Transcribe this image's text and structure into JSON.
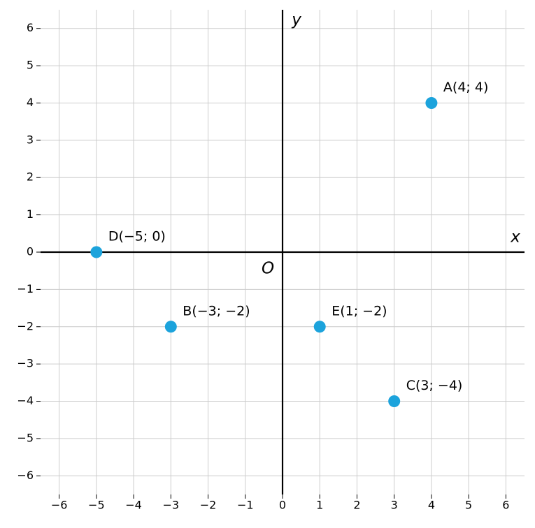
{
  "chart_data": {
    "type": "scatter",
    "x_label": "x",
    "y_label": "y",
    "origin_label": "O",
    "xlim": [
      -6.5,
      6.5
    ],
    "ylim": [
      -6.5,
      6.5
    ],
    "xticks": [
      {
        "value": -6,
        "label": "−6"
      },
      {
        "value": -5,
        "label": "−5"
      },
      {
        "value": -4,
        "label": "−4"
      },
      {
        "value": -3,
        "label": "−3"
      },
      {
        "value": -2,
        "label": "−2"
      },
      {
        "value": -1,
        "label": "−1"
      },
      0,
      1,
      2,
      3,
      4,
      5,
      6
    ],
    "yticks": [
      {
        "value": -6,
        "label": "−6"
      },
      {
        "value": -5,
        "label": "−5"
      },
      {
        "value": -4,
        "label": "−4"
      },
      {
        "value": -3,
        "label": "−3"
      },
      {
        "value": -2,
        "label": "−2"
      },
      {
        "value": -1,
        "label": "−1"
      },
      0,
      1,
      2,
      3,
      4,
      5,
      6
    ],
    "grid": true,
    "series": [
      {
        "color": "#1ca3dc",
        "x": [
          4,
          -3,
          3,
          -5,
          1
        ],
        "values": [
          4,
          -2,
          -4,
          0,
          -2
        ],
        "point_labels": [
          "A(4; 4)",
          "B(−3; −2)",
          "C(3; −4)",
          "D(−5; 0)",
          "E(1; −2)"
        ]
      }
    ]
  }
}
